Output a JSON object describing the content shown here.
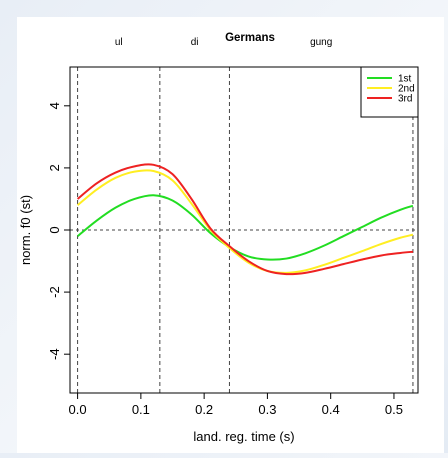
{
  "chart_data": {
    "type": "line",
    "title": "Germans",
    "xlabel": "land. reg. time (s)",
    "ylabel": "norm. f0 (st)",
    "xlim": [
      -0.012,
      0.538
    ],
    "ylim": [
      -5.25,
      5.25
    ],
    "x_ticks": [
      0.0,
      0.1,
      0.2,
      0.3,
      0.4,
      0.5
    ],
    "x_tick_labels": [
      "0.0",
      "0.1",
      "0.2",
      "0.3",
      "0.4",
      "0.5"
    ],
    "y_ticks": [
      -4,
      -2,
      0,
      2,
      4
    ],
    "y_tick_labels": [
      "-4",
      "-2",
      "0",
      "2",
      "4"
    ],
    "grid": false,
    "legend_position": "top-right",
    "boundaries": [
      {
        "x": 0.0,
        "label": ""
      },
      {
        "x": 0.13,
        "label": ""
      },
      {
        "x": 0.24,
        "label": ""
      },
      {
        "x": 0.53,
        "label": ""
      }
    ],
    "syllables": [
      {
        "label": "ul",
        "x": 0.065
      },
      {
        "label": "di",
        "x": 0.185
      },
      {
        "label": "gung",
        "x": 0.385
      }
    ],
    "reference_line": {
      "y": 0
    },
    "series": [
      {
        "name": "1st",
        "color": "#22dd22",
        "x": [
          0.0,
          0.03,
          0.06,
          0.09,
          0.12,
          0.15,
          0.18,
          0.21,
          0.24,
          0.27,
          0.3,
          0.33,
          0.36,
          0.39,
          0.42,
          0.45,
          0.48,
          0.51,
          0.53
        ],
        "y": [
          -0.2,
          0.3,
          0.72,
          1.0,
          1.12,
          0.95,
          0.5,
          -0.1,
          -0.55,
          -0.85,
          -0.95,
          -0.92,
          -0.75,
          -0.5,
          -0.2,
          0.1,
          0.4,
          0.65,
          0.78
        ]
      },
      {
        "name": "2nd",
        "color": "#ffee22",
        "x": [
          0.0,
          0.03,
          0.06,
          0.09,
          0.12,
          0.15,
          0.18,
          0.21,
          0.24,
          0.27,
          0.3,
          0.33,
          0.36,
          0.39,
          0.42,
          0.45,
          0.48,
          0.51,
          0.53
        ],
        "y": [
          0.8,
          1.3,
          1.68,
          1.88,
          1.9,
          1.6,
          0.85,
          0.0,
          -0.58,
          -1.05,
          -1.32,
          -1.38,
          -1.3,
          -1.12,
          -0.9,
          -0.68,
          -0.45,
          -0.25,
          -0.15
        ]
      },
      {
        "name": "3rd",
        "color": "#ee2222",
        "x": [
          0.0,
          0.03,
          0.06,
          0.09,
          0.12,
          0.15,
          0.18,
          0.21,
          0.24,
          0.27,
          0.3,
          0.33,
          0.36,
          0.39,
          0.42,
          0.45,
          0.48,
          0.51,
          0.53
        ],
        "y": [
          1.0,
          1.5,
          1.85,
          2.05,
          2.1,
          1.8,
          1.0,
          0.05,
          -0.52,
          -1.0,
          -1.32,
          -1.42,
          -1.38,
          -1.25,
          -1.1,
          -0.95,
          -0.82,
          -0.74,
          -0.7
        ]
      }
    ]
  }
}
